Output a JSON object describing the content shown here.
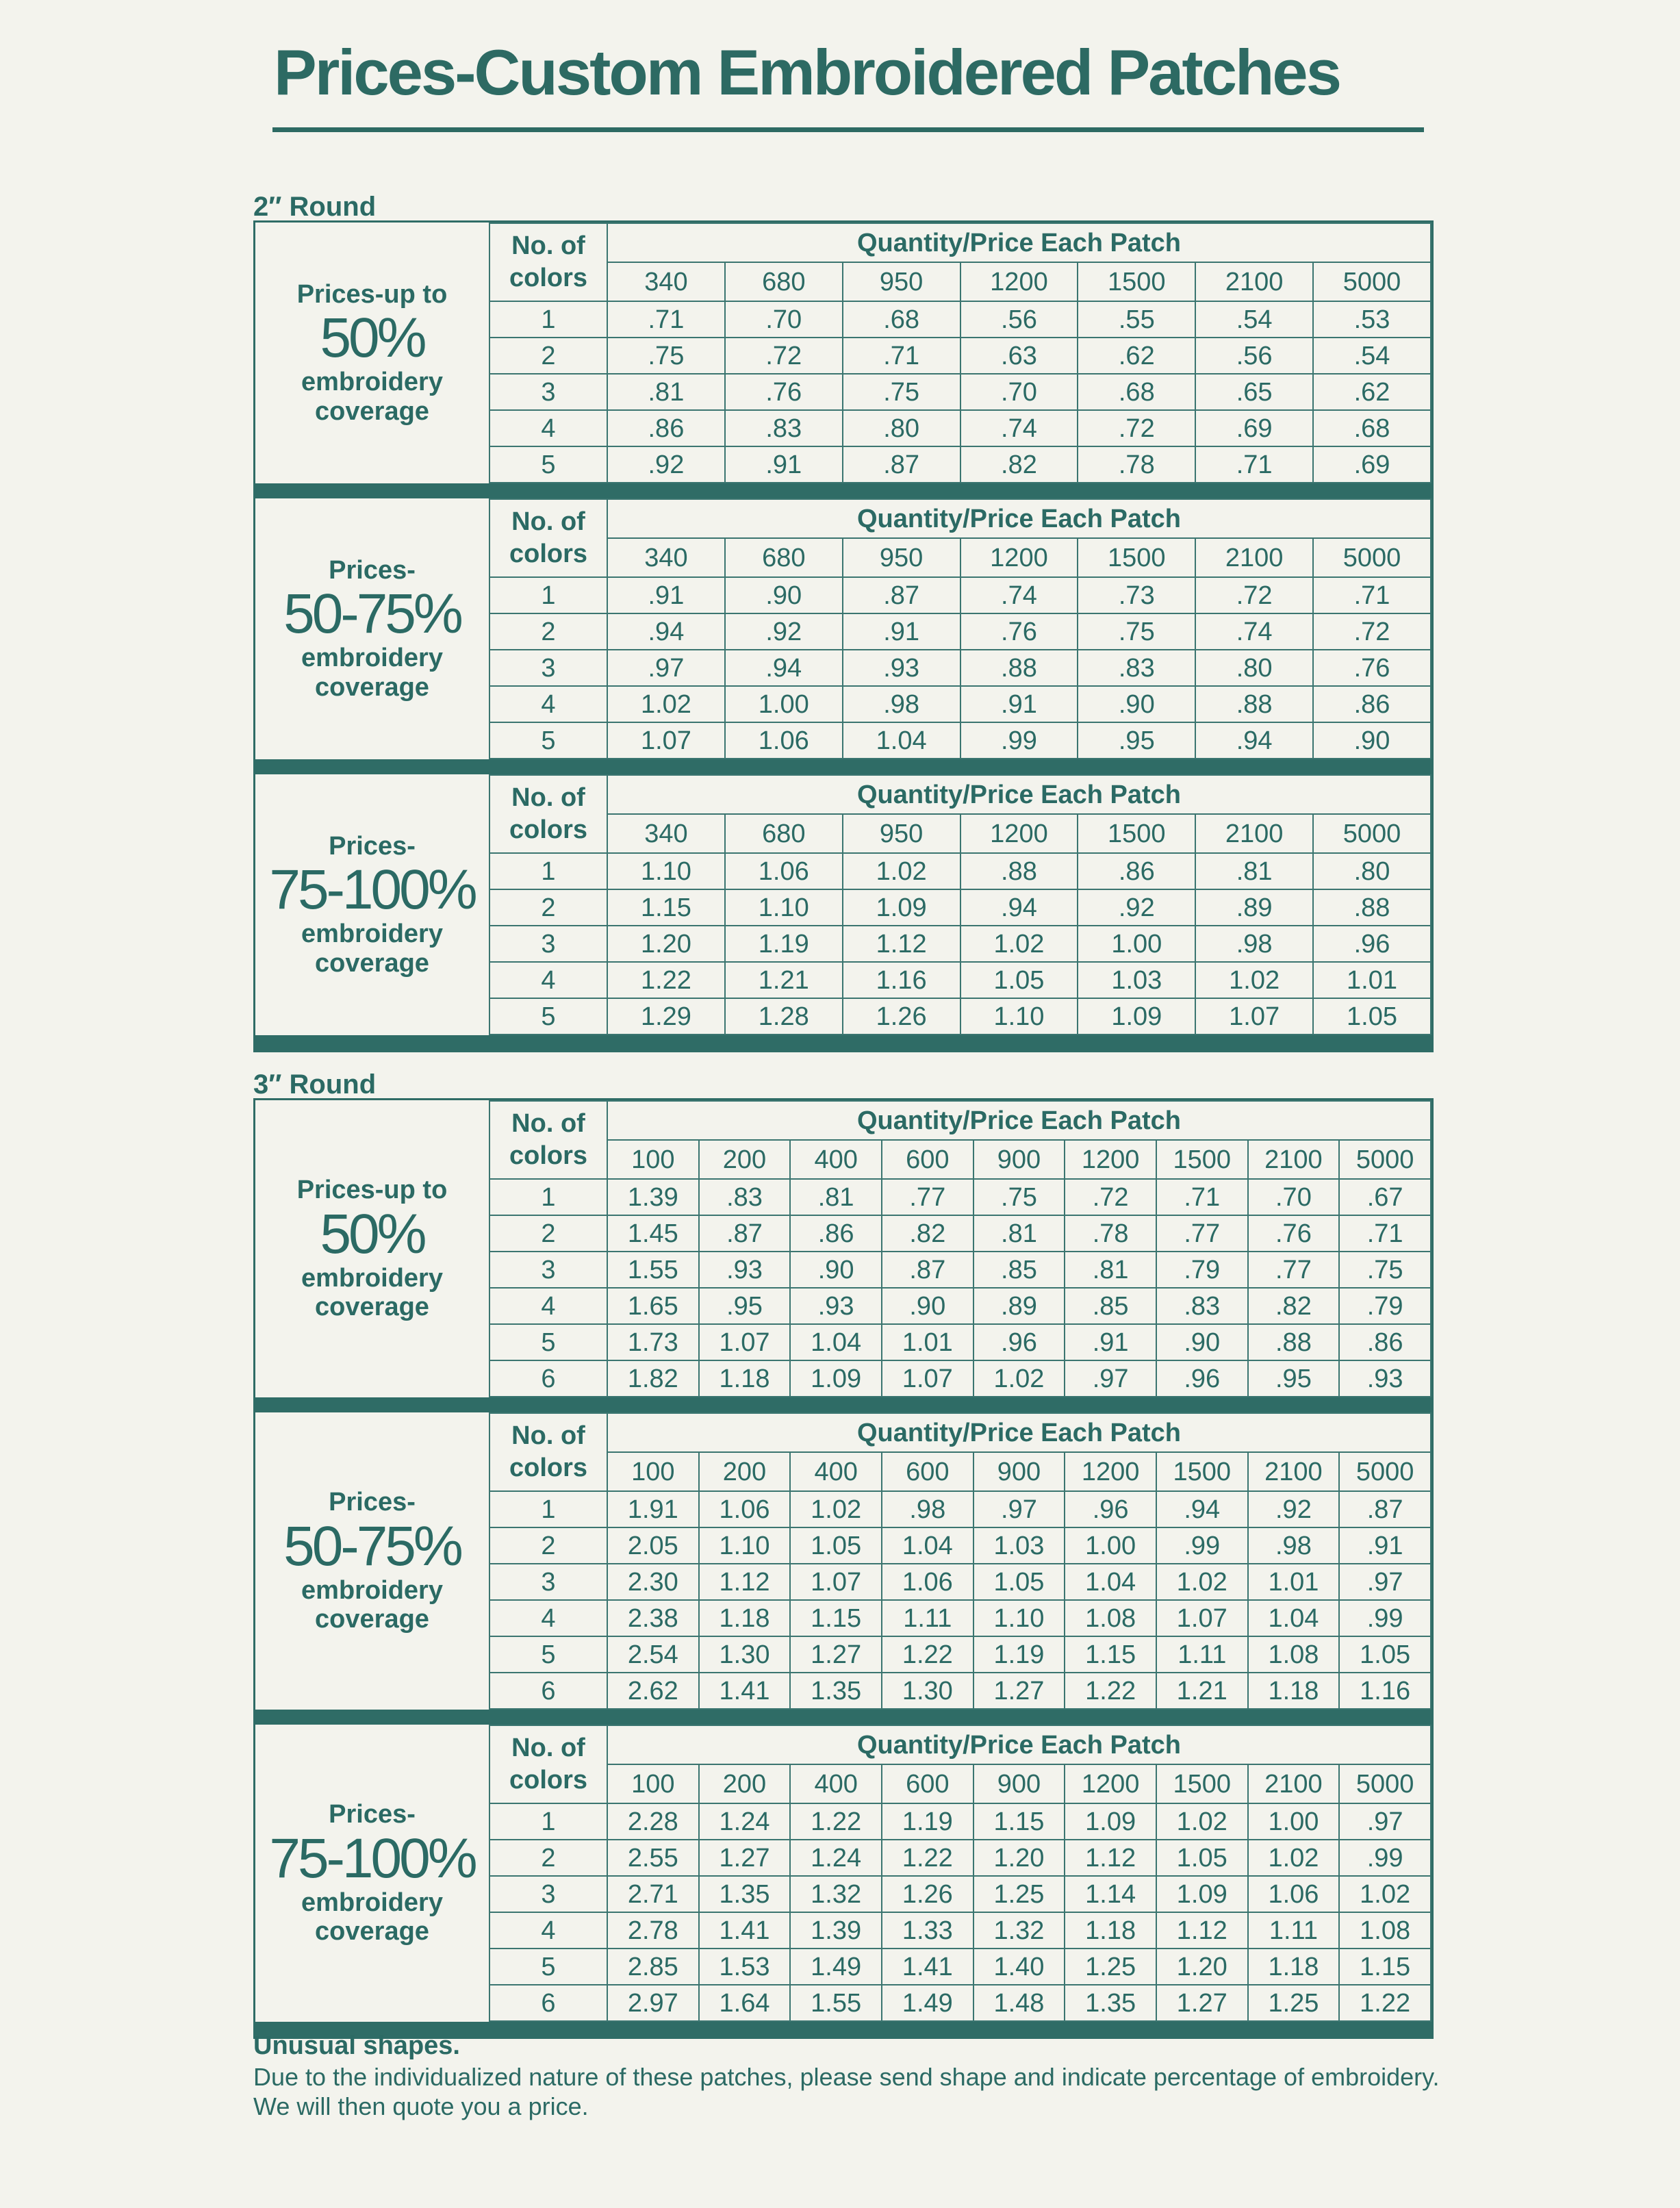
{
  "title": "Prices-Custom Embroidered Patches",
  "sections": [
    {
      "label": "2″ Round",
      "colors_header": "No. of\ncolors",
      "quantity_header": "Quantity/Price Each Patch",
      "quantities": [
        "340",
        "680",
        "950",
        "1200",
        "1500",
        "2100",
        "5000"
      ],
      "blocks": [
        {
          "coverage_prefix": "Prices-up to",
          "coverage_percent": "50%",
          "coverage_suffix": "embroidery\ncoverage",
          "rows": [
            {
              "colors": "1",
              "prices": [
                ".71",
                ".70",
                ".68",
                ".56",
                ".55",
                ".54",
                ".53"
              ]
            },
            {
              "colors": "2",
              "prices": [
                ".75",
                ".72",
                ".71",
                ".63",
                ".62",
                ".56",
                ".54"
              ]
            },
            {
              "colors": "3",
              "prices": [
                ".81",
                ".76",
                ".75",
                ".70",
                ".68",
                ".65",
                ".62"
              ]
            },
            {
              "colors": "4",
              "prices": [
                ".86",
                ".83",
                ".80",
                ".74",
                ".72",
                ".69",
                ".68"
              ]
            },
            {
              "colors": "5",
              "prices": [
                ".92",
                ".91",
                ".87",
                ".82",
                ".78",
                ".71",
                ".69"
              ]
            }
          ]
        },
        {
          "coverage_prefix": "Prices-",
          "coverage_percent": "50-75%",
          "coverage_suffix": "embroidery\ncoverage",
          "rows": [
            {
              "colors": "1",
              "prices": [
                ".91",
                ".90",
                ".87",
                ".74",
                ".73",
                ".72",
                ".71"
              ]
            },
            {
              "colors": "2",
              "prices": [
                ".94",
                ".92",
                ".91",
                ".76",
                ".75",
                ".74",
                ".72"
              ]
            },
            {
              "colors": "3",
              "prices": [
                ".97",
                ".94",
                ".93",
                ".88",
                ".83",
                ".80",
                ".76"
              ]
            },
            {
              "colors": "4",
              "prices": [
                "1.02",
                "1.00",
                ".98",
                ".91",
                ".90",
                ".88",
                ".86"
              ]
            },
            {
              "colors": "5",
              "prices": [
                "1.07",
                "1.06",
                "1.04",
                ".99",
                ".95",
                ".94",
                ".90"
              ]
            }
          ]
        },
        {
          "coverage_prefix": "Prices-",
          "coverage_percent": "75-100%",
          "coverage_suffix": "embroidery\ncoverage",
          "rows": [
            {
              "colors": "1",
              "prices": [
                "1.10",
                "1.06",
                "1.02",
                ".88",
                ".86",
                ".81",
                ".80"
              ]
            },
            {
              "colors": "2",
              "prices": [
                "1.15",
                "1.10",
                "1.09",
                ".94",
                ".92",
                ".89",
                ".88"
              ]
            },
            {
              "colors": "3",
              "prices": [
                "1.20",
                "1.19",
                "1.12",
                "1.02",
                "1.00",
                ".98",
                ".96"
              ]
            },
            {
              "colors": "4",
              "prices": [
                "1.22",
                "1.21",
                "1.16",
                "1.05",
                "1.03",
                "1.02",
                "1.01"
              ]
            },
            {
              "colors": "5",
              "prices": [
                "1.29",
                "1.28",
                "1.26",
                "1.10",
                "1.09",
                "1.07",
                "1.05"
              ]
            }
          ]
        }
      ]
    },
    {
      "label": "3″ Round",
      "colors_header": "No. of\ncolors",
      "quantity_header": "Quantity/Price Each Patch",
      "quantities": [
        "100",
        "200",
        "400",
        "600",
        "900",
        "1200",
        "1500",
        "2100",
        "5000"
      ],
      "blocks": [
        {
          "coverage_prefix": "Prices-up to",
          "coverage_percent": "50%",
          "coverage_suffix": "embroidery\ncoverage",
          "rows": [
            {
              "colors": "1",
              "prices": [
                "1.39",
                ".83",
                ".81",
                ".77",
                ".75",
                ".72",
                ".71",
                ".70",
                ".67"
              ]
            },
            {
              "colors": "2",
              "prices": [
                "1.45",
                ".87",
                ".86",
                ".82",
                ".81",
                ".78",
                ".77",
                ".76",
                ".71"
              ]
            },
            {
              "colors": "3",
              "prices": [
                "1.55",
                ".93",
                ".90",
                ".87",
                ".85",
                ".81",
                ".79",
                ".77",
                ".75"
              ]
            },
            {
              "colors": "4",
              "prices": [
                "1.65",
                ".95",
                ".93",
                ".90",
                ".89",
                ".85",
                ".83",
                ".82",
                ".79"
              ]
            },
            {
              "colors": "5",
              "prices": [
                "1.73",
                "1.07",
                "1.04",
                "1.01",
                ".96",
                ".91",
                ".90",
                ".88",
                ".86"
              ]
            },
            {
              "colors": "6",
              "prices": [
                "1.82",
                "1.18",
                "1.09",
                "1.07",
                "1.02",
                ".97",
                ".96",
                ".95",
                ".93"
              ]
            }
          ]
        },
        {
          "coverage_prefix": "Prices-",
          "coverage_percent": "50-75%",
          "coverage_suffix": "embroidery\ncoverage",
          "rows": [
            {
              "colors": "1",
              "prices": [
                "1.91",
                "1.06",
                "1.02",
                ".98",
                ".97",
                ".96",
                ".94",
                ".92",
                ".87"
              ]
            },
            {
              "colors": "2",
              "prices": [
                "2.05",
                "1.10",
                "1.05",
                "1.04",
                "1.03",
                "1.00",
                ".99",
                ".98",
                ".91"
              ]
            },
            {
              "colors": "3",
              "prices": [
                "2.30",
                "1.12",
                "1.07",
                "1.06",
                "1.05",
                "1.04",
                "1.02",
                "1.01",
                ".97"
              ]
            },
            {
              "colors": "4",
              "prices": [
                "2.38",
                "1.18",
                "1.15",
                "1.11",
                "1.10",
                "1.08",
                "1.07",
                "1.04",
                ".99"
              ]
            },
            {
              "colors": "5",
              "prices": [
                "2.54",
                "1.30",
                "1.27",
                "1.22",
                "1.19",
                "1.15",
                "1.11",
                "1.08",
                "1.05"
              ]
            },
            {
              "colors": "6",
              "prices": [
                "2.62",
                "1.41",
                "1.35",
                "1.30",
                "1.27",
                "1.22",
                "1.21",
                "1.18",
                "1.16"
              ]
            }
          ]
        },
        {
          "coverage_prefix": "Prices-",
          "coverage_percent": "75-100%",
          "coverage_suffix": "embroidery\ncoverage",
          "rows": [
            {
              "colors": "1",
              "prices": [
                "2.28",
                "1.24",
                "1.22",
                "1.19",
                "1.15",
                "1.09",
                "1.02",
                "1.00",
                ".97"
              ]
            },
            {
              "colors": "2",
              "prices": [
                "2.55",
                "1.27",
                "1.24",
                "1.22",
                "1.20",
                "1.12",
                "1.05",
                "1.02",
                ".99"
              ]
            },
            {
              "colors": "3",
              "prices": [
                "2.71",
                "1.35",
                "1.32",
                "1.26",
                "1.25",
                "1.14",
                "1.09",
                "1.06",
                "1.02"
              ]
            },
            {
              "colors": "4",
              "prices": [
                "2.78",
                "1.41",
                "1.39",
                "1.33",
                "1.32",
                "1.18",
                "1.12",
                "1.11",
                "1.08"
              ]
            },
            {
              "colors": "5",
              "prices": [
                "2.85",
                "1.53",
                "1.49",
                "1.41",
                "1.40",
                "1.25",
                "1.20",
                "1.18",
                "1.15"
              ]
            },
            {
              "colors": "6",
              "prices": [
                "2.97",
                "1.64",
                "1.55",
                "1.49",
                "1.48",
                "1.35",
                "1.27",
                "1.25",
                "1.22"
              ]
            }
          ]
        }
      ]
    }
  ],
  "note": {
    "heading": "Unusual shapes.",
    "text": "Due to the individualized nature of these patches, please send shape and indicate percentage of embroidery. We will then quote you a price."
  },
  "colors": {
    "ink": "#2b6a64",
    "paper": "#f3f3ed"
  }
}
